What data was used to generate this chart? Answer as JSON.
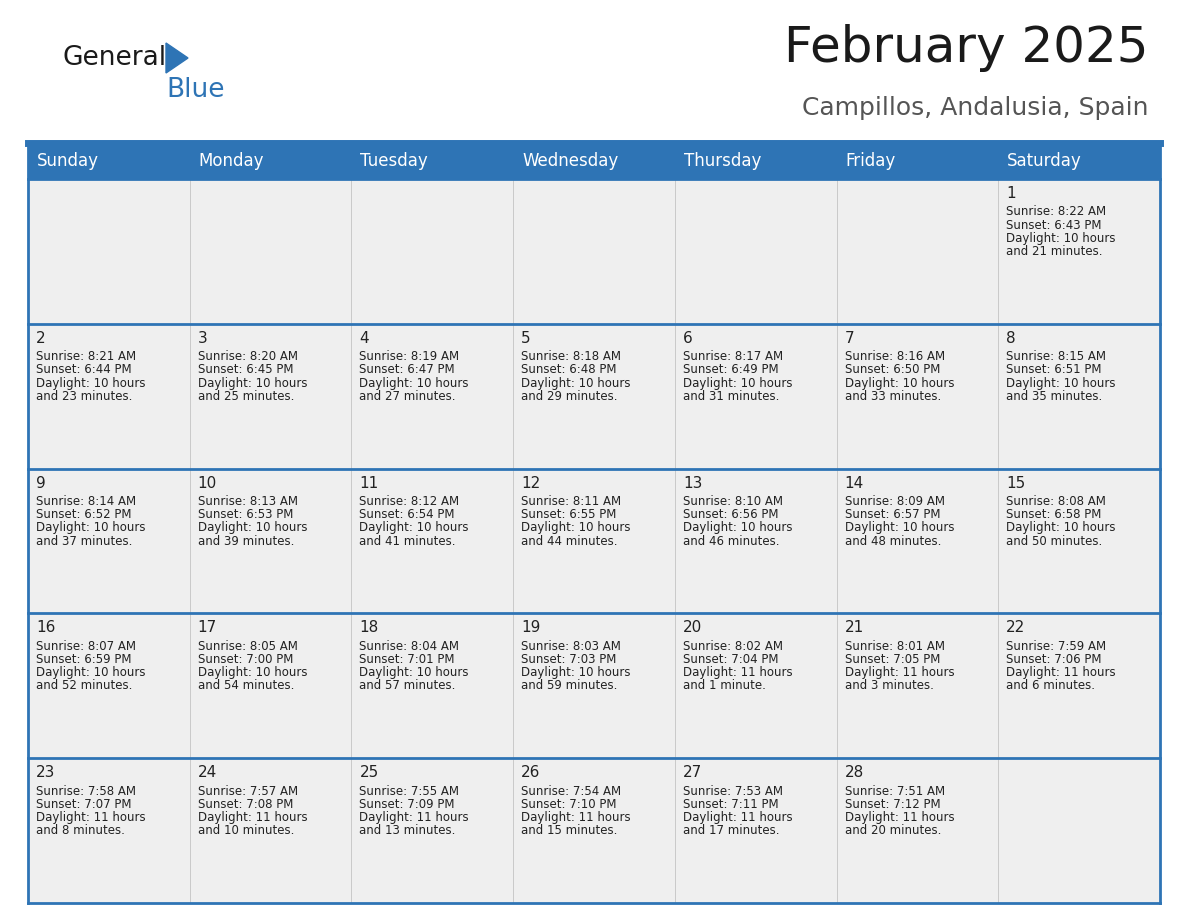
{
  "title": "February 2025",
  "subtitle": "Campillos, Andalusia, Spain",
  "header_bg": "#2E74B5",
  "header_text_color": "#FFFFFF",
  "days_of_week": [
    "Sunday",
    "Monday",
    "Tuesday",
    "Wednesday",
    "Thursday",
    "Friday",
    "Saturday"
  ],
  "cell_bg": "#EFEFEF",
  "divider_color": "#2E74B5",
  "text_color": "#222222",
  "day_num_color": "#1a1a1a",
  "info_font_size": 8.5,
  "day_num_font_size": 11,
  "header_font_size": 12,
  "title_font_size": 36,
  "subtitle_font_size": 18,
  "calendar_data": [
    [
      null,
      null,
      null,
      null,
      null,
      null,
      {
        "day": "1",
        "lines": [
          "Sunrise: 8:22 AM",
          "Sunset: 6:43 PM",
          "Daylight: 10 hours",
          "and 21 minutes."
        ]
      }
    ],
    [
      {
        "day": "2",
        "lines": [
          "Sunrise: 8:21 AM",
          "Sunset: 6:44 PM",
          "Daylight: 10 hours",
          "and 23 minutes."
        ]
      },
      {
        "day": "3",
        "lines": [
          "Sunrise: 8:20 AM",
          "Sunset: 6:45 PM",
          "Daylight: 10 hours",
          "and 25 minutes."
        ]
      },
      {
        "day": "4",
        "lines": [
          "Sunrise: 8:19 AM",
          "Sunset: 6:47 PM",
          "Daylight: 10 hours",
          "and 27 minutes."
        ]
      },
      {
        "day": "5",
        "lines": [
          "Sunrise: 8:18 AM",
          "Sunset: 6:48 PM",
          "Daylight: 10 hours",
          "and 29 minutes."
        ]
      },
      {
        "day": "6",
        "lines": [
          "Sunrise: 8:17 AM",
          "Sunset: 6:49 PM",
          "Daylight: 10 hours",
          "and 31 minutes."
        ]
      },
      {
        "day": "7",
        "lines": [
          "Sunrise: 8:16 AM",
          "Sunset: 6:50 PM",
          "Daylight: 10 hours",
          "and 33 minutes."
        ]
      },
      {
        "day": "8",
        "lines": [
          "Sunrise: 8:15 AM",
          "Sunset: 6:51 PM",
          "Daylight: 10 hours",
          "and 35 minutes."
        ]
      }
    ],
    [
      {
        "day": "9",
        "lines": [
          "Sunrise: 8:14 AM",
          "Sunset: 6:52 PM",
          "Daylight: 10 hours",
          "and 37 minutes."
        ]
      },
      {
        "day": "10",
        "lines": [
          "Sunrise: 8:13 AM",
          "Sunset: 6:53 PM",
          "Daylight: 10 hours",
          "and 39 minutes."
        ]
      },
      {
        "day": "11",
        "lines": [
          "Sunrise: 8:12 AM",
          "Sunset: 6:54 PM",
          "Daylight: 10 hours",
          "and 41 minutes."
        ]
      },
      {
        "day": "12",
        "lines": [
          "Sunrise: 8:11 AM",
          "Sunset: 6:55 PM",
          "Daylight: 10 hours",
          "and 44 minutes."
        ]
      },
      {
        "day": "13",
        "lines": [
          "Sunrise: 8:10 AM",
          "Sunset: 6:56 PM",
          "Daylight: 10 hours",
          "and 46 minutes."
        ]
      },
      {
        "day": "14",
        "lines": [
          "Sunrise: 8:09 AM",
          "Sunset: 6:57 PM",
          "Daylight: 10 hours",
          "and 48 minutes."
        ]
      },
      {
        "day": "15",
        "lines": [
          "Sunrise: 8:08 AM",
          "Sunset: 6:58 PM",
          "Daylight: 10 hours",
          "and 50 minutes."
        ]
      }
    ],
    [
      {
        "day": "16",
        "lines": [
          "Sunrise: 8:07 AM",
          "Sunset: 6:59 PM",
          "Daylight: 10 hours",
          "and 52 minutes."
        ]
      },
      {
        "day": "17",
        "lines": [
          "Sunrise: 8:05 AM",
          "Sunset: 7:00 PM",
          "Daylight: 10 hours",
          "and 54 minutes."
        ]
      },
      {
        "day": "18",
        "lines": [
          "Sunrise: 8:04 AM",
          "Sunset: 7:01 PM",
          "Daylight: 10 hours",
          "and 57 minutes."
        ]
      },
      {
        "day": "19",
        "lines": [
          "Sunrise: 8:03 AM",
          "Sunset: 7:03 PM",
          "Daylight: 10 hours",
          "and 59 minutes."
        ]
      },
      {
        "day": "20",
        "lines": [
          "Sunrise: 8:02 AM",
          "Sunset: 7:04 PM",
          "Daylight: 11 hours",
          "and 1 minute."
        ]
      },
      {
        "day": "21",
        "lines": [
          "Sunrise: 8:01 AM",
          "Sunset: 7:05 PM",
          "Daylight: 11 hours",
          "and 3 minutes."
        ]
      },
      {
        "day": "22",
        "lines": [
          "Sunrise: 7:59 AM",
          "Sunset: 7:06 PM",
          "Daylight: 11 hours",
          "and 6 minutes."
        ]
      }
    ],
    [
      {
        "day": "23",
        "lines": [
          "Sunrise: 7:58 AM",
          "Sunset: 7:07 PM",
          "Daylight: 11 hours",
          "and 8 minutes."
        ]
      },
      {
        "day": "24",
        "lines": [
          "Sunrise: 7:57 AM",
          "Sunset: 7:08 PM",
          "Daylight: 11 hours",
          "and 10 minutes."
        ]
      },
      {
        "day": "25",
        "lines": [
          "Sunrise: 7:55 AM",
          "Sunset: 7:09 PM",
          "Daylight: 11 hours",
          "and 13 minutes."
        ]
      },
      {
        "day": "26",
        "lines": [
          "Sunrise: 7:54 AM",
          "Sunset: 7:10 PM",
          "Daylight: 11 hours",
          "and 15 minutes."
        ]
      },
      {
        "day": "27",
        "lines": [
          "Sunrise: 7:53 AM",
          "Sunset: 7:11 PM",
          "Daylight: 11 hours",
          "and 17 minutes."
        ]
      },
      {
        "day": "28",
        "lines": [
          "Sunrise: 7:51 AM",
          "Sunset: 7:12 PM",
          "Daylight: 11 hours",
          "and 20 minutes."
        ]
      },
      null
    ]
  ]
}
